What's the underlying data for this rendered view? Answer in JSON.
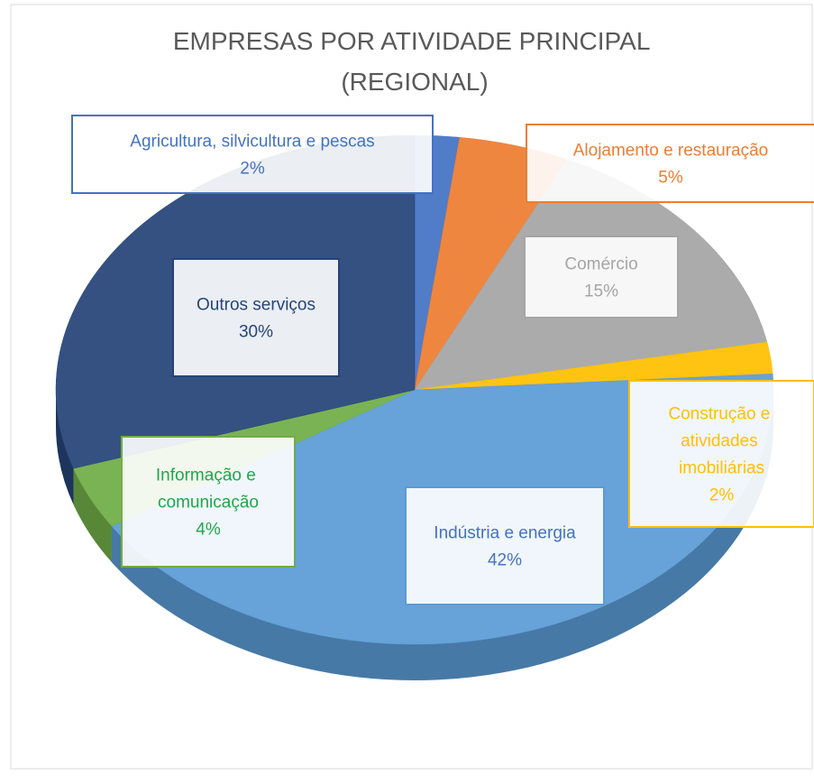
{
  "chart_data": {
    "type": "pie",
    "title": "EMPRESAS POR ATIVIDADE PRINCIPAL (REGIONAL)",
    "categories": [
      "Agricultura, silvicultura e pescas",
      "Alojamento e restauração",
      "Comércio",
      "Construção e atividades imobiliárias",
      "Indústria e energia",
      "Informação e comunicação",
      "Outros serviços"
    ],
    "values": [
      2,
      5,
      15,
      2,
      42,
      4,
      30
    ],
    "value_labels": [
      "2%",
      "5%",
      "15%",
      "2%",
      "42%",
      "4%",
      "30%"
    ],
    "colors": [
      "#4472c4",
      "#ed7d31",
      "#a5a5a5",
      "#ffc000",
      "#5b9bd5",
      "#70ad47",
      "#264478"
    ],
    "label_colors": [
      "#4472c4",
      "#ed7d31",
      "#a5a5a5",
      "#ffc000",
      "#4472c4",
      "#1ea84a",
      "#264478"
    ]
  }
}
